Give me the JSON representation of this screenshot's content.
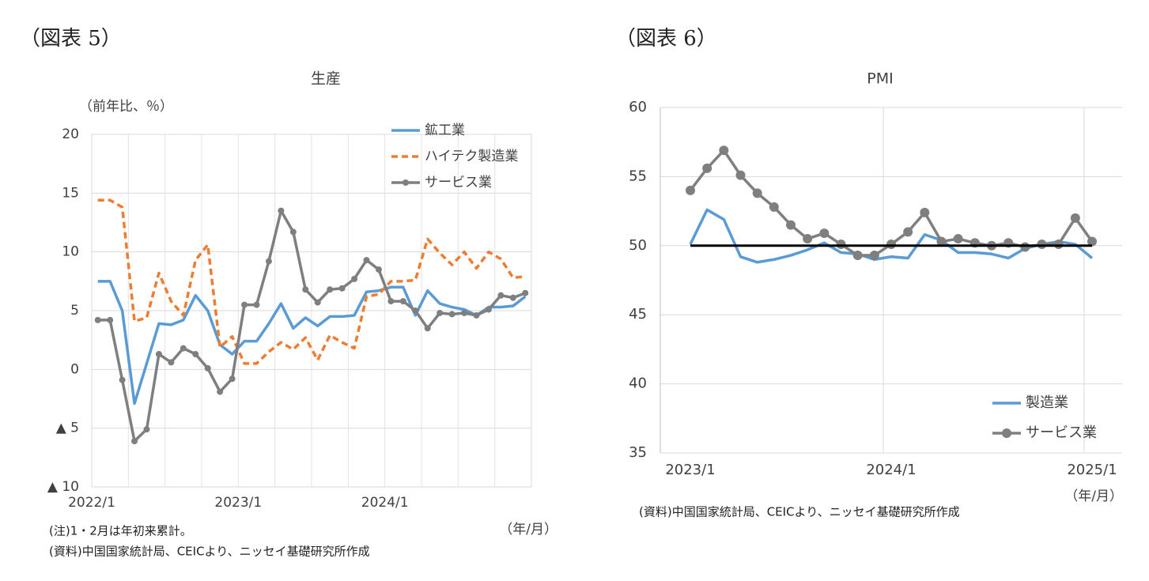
{
  "chart_data": [
    {
      "type": "line",
      "label": "（図表 5）",
      "title": "生産",
      "ylabel": "（前年比、％）",
      "xlabel": "（年/月）",
      "notes": [
        "(注)1・2月は年初来累計。",
        "(資料)中国国家統計局、CEICより、ニッセイ基礎研究所作成"
      ],
      "categories": [
        "2022/1",
        null,
        null,
        null,
        null,
        null,
        null,
        null,
        null,
        null,
        null,
        null,
        "2023/1",
        null,
        null,
        null,
        null,
        null,
        null,
        null,
        null,
        null,
        null,
        null,
        "2024/1",
        null,
        null,
        null,
        null,
        null,
        null,
        null,
        null,
        null,
        null,
        null
      ],
      "ylim": [
        -10,
        20
      ],
      "yticks": [
        20,
        15,
        10,
        5,
        0,
        {
          "value": -5,
          "label": "▲ 5"
        },
        {
          "value": -10,
          "label": "▲ 10"
        }
      ],
      "grid": true,
      "series": [
        {
          "name": "鉱工業",
          "color": "#5b9bd5",
          "line_style": "solid",
          "marker": false,
          "values": [
            7.5,
            7.5,
            5.0,
            -2.9,
            0.5,
            3.9,
            3.8,
            4.2,
            6.3,
            5.0,
            2.1,
            1.3,
            2.4,
            2.4,
            3.9,
            5.6,
            3.5,
            4.4,
            3.7,
            4.5,
            4.5,
            4.6,
            6.6,
            6.7,
            7.0,
            7.0,
            4.6,
            6.7,
            5.6,
            5.3,
            5.1,
            4.6,
            5.3,
            5.3,
            5.4,
            6.2
          ]
        },
        {
          "name": "ハイテク製造業",
          "color": "#ed7d31",
          "line_style": "dashed",
          "marker": false,
          "values": [
            14.4,
            14.4,
            13.8,
            4.1,
            4.4,
            8.2,
            5.8,
            4.6,
            9.3,
            10.6,
            1.9,
            2.8,
            0.5,
            0.5,
            1.5,
            2.3,
            1.7,
            2.7,
            0.8,
            2.9,
            2.3,
            1.8,
            6.2,
            6.4,
            7.5,
            7.5,
            7.6,
            11.1,
            9.9,
            8.9,
            10.0,
            8.6,
            10.0,
            9.4,
            7.8,
            7.9
          ]
        },
        {
          "name": "サービス業",
          "color": "#7f7f7f",
          "line_style": "solid",
          "marker": true,
          "values": [
            4.2,
            4.2,
            -0.9,
            -6.1,
            -5.1,
            1.3,
            0.6,
            1.8,
            1.3,
            0.1,
            -1.9,
            -0.8,
            5.5,
            5.5,
            9.2,
            13.5,
            11.7,
            6.8,
            5.7,
            6.8,
            6.9,
            7.7,
            9.3,
            8.5,
            5.8,
            5.8,
            5.0,
            3.5,
            4.8,
            4.7,
            4.8,
            4.6,
            5.1,
            6.3,
            6.1,
            6.5
          ]
        }
      ]
    },
    {
      "type": "line",
      "label": "（図表 6）",
      "title": "PMI",
      "xlabel": "（年/月）",
      "notes": [
        "(資料)中国国家統計局、CEICより、ニッセイ基礎研究所作成"
      ],
      "categories": [
        "2023/1",
        null,
        null,
        null,
        null,
        null,
        null,
        null,
        null,
        null,
        null,
        null,
        "2024/1",
        null,
        null,
        null,
        null,
        null,
        null,
        null,
        null,
        null,
        null,
        null,
        "2025/1"
      ],
      "ylim": [
        35,
        60
      ],
      "yticks": [
        60,
        55,
        50,
        45,
        40,
        35
      ],
      "grid": true,
      "hline": 50,
      "hline_color": "#000000",
      "series": [
        {
          "name": "製造業",
          "color": "#5b9bd5",
          "line_style": "solid",
          "marker": false,
          "values": [
            50.1,
            52.6,
            51.9,
            49.2,
            48.8,
            49.0,
            49.3,
            49.7,
            50.2,
            49.5,
            49.4,
            49.0,
            49.2,
            49.1,
            50.8,
            50.4,
            49.5,
            49.5,
            49.4,
            49.1,
            49.8,
            50.1,
            50.3,
            50.1,
            49.1
          ]
        },
        {
          "name": "サービス業",
          "color": "#7f7f7f",
          "line_style": "solid",
          "marker": true,
          "values": [
            54.0,
            55.6,
            56.9,
            55.1,
            53.8,
            52.8,
            51.5,
            50.5,
            50.9,
            50.1,
            49.3,
            49.3,
            50.1,
            51.0,
            52.4,
            50.3,
            50.5,
            50.2,
            50.0,
            50.2,
            49.9,
            50.1,
            50.1,
            52.0,
            50.3
          ]
        }
      ]
    }
  ]
}
